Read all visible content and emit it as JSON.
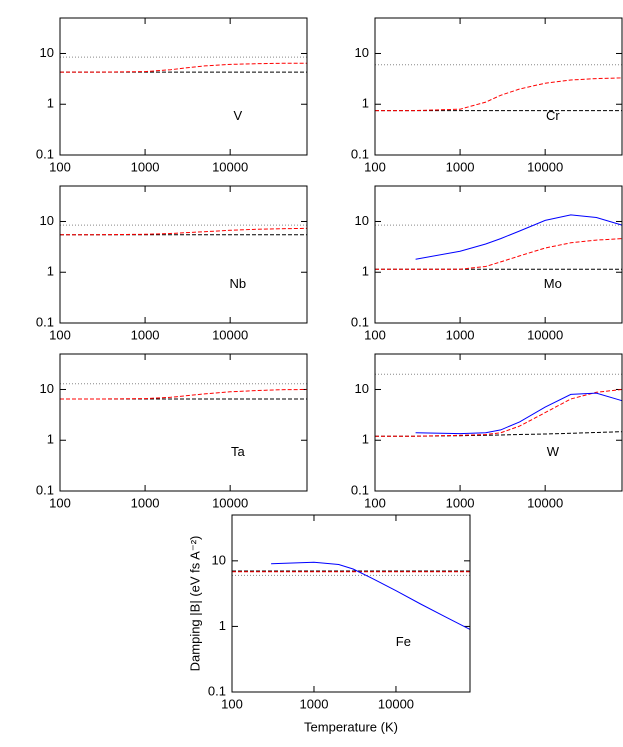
{
  "chart_data": [
    {
      "type": "line",
      "label": "V",
      "log_x": true,
      "log_y": true,
      "xlim": [
        100,
        80000
      ],
      "ylim": [
        0.1,
        50
      ],
      "xticks": [
        100,
        1000,
        10000
      ],
      "yticks": [
        0.1,
        1,
        10
      ],
      "x": [
        100,
        300,
        1000,
        2000,
        3000,
        5000,
        10000,
        20000,
        40000,
        80000
      ],
      "series": [
        {
          "color": "#000000",
          "style": "dashed",
          "values": [
            4.3,
            4.3,
            4.3,
            4.3,
            4.3,
            4.3,
            4.3,
            4.3,
            4.3,
            4.3
          ]
        },
        {
          "color": "#ff0000",
          "style": "dashed",
          "values": [
            4.3,
            4.3,
            4.4,
            4.8,
            5.2,
            5.7,
            6.1,
            6.3,
            6.4,
            6.4
          ]
        },
        {
          "color": "#888888",
          "style": "dotted",
          "values": [
            8.5,
            8.5,
            8.5,
            8.5,
            8.5,
            8.5,
            8.5,
            8.5,
            8.5,
            8.5
          ]
        }
      ]
    },
    {
      "type": "line",
      "label": "Cr",
      "log_x": true,
      "log_y": true,
      "xlim": [
        100,
        80000
      ],
      "ylim": [
        0.1,
        50
      ],
      "xticks": [
        100,
        1000,
        10000
      ],
      "yticks": [
        0.1,
        1,
        10
      ],
      "x": [
        100,
        300,
        1000,
        2000,
        3000,
        5000,
        10000,
        20000,
        40000,
        80000
      ],
      "series": [
        {
          "color": "#000000",
          "style": "dashed",
          "values": [
            0.75,
            0.75,
            0.75,
            0.75,
            0.75,
            0.75,
            0.75,
            0.75,
            0.75,
            0.75
          ]
        },
        {
          "color": "#ff0000",
          "style": "dashed",
          "values": [
            0.75,
            0.75,
            0.8,
            1.1,
            1.5,
            2.0,
            2.6,
            3.0,
            3.2,
            3.3
          ]
        },
        {
          "color": "#888888",
          "style": "dotted",
          "values": [
            6,
            6,
            6,
            6,
            6,
            6,
            6,
            6,
            6,
            6
          ]
        }
      ]
    },
    {
      "type": "line",
      "label": "Nb",
      "log_x": true,
      "log_y": true,
      "xlim": [
        100,
        80000
      ],
      "ylim": [
        0.1,
        50
      ],
      "xticks": [
        100,
        1000,
        10000
      ],
      "yticks": [
        0.1,
        1,
        10
      ],
      "x": [
        100,
        300,
        1000,
        2000,
        3000,
        5000,
        10000,
        20000,
        40000,
        80000
      ],
      "series": [
        {
          "color": "#000000",
          "style": "dashed",
          "values": [
            5.5,
            5.5,
            5.5,
            5.5,
            5.5,
            5.5,
            5.5,
            5.5,
            5.5,
            5.5
          ]
        },
        {
          "color": "#ff0000",
          "style": "dashed",
          "values": [
            5.5,
            5.5,
            5.6,
            5.8,
            6.0,
            6.3,
            6.7,
            7.0,
            7.2,
            7.3
          ]
        },
        {
          "color": "#888888",
          "style": "dotted",
          "values": [
            8.5,
            8.5,
            8.5,
            8.5,
            8.5,
            8.5,
            8.5,
            8.5,
            8.5,
            8.5
          ]
        }
      ]
    },
    {
      "type": "line",
      "label": "Mo",
      "log_x": true,
      "log_y": true,
      "xlim": [
        100,
        80000
      ],
      "ylim": [
        0.1,
        50
      ],
      "xticks": [
        100,
        1000,
        10000
      ],
      "yticks": [
        0.1,
        1,
        10
      ],
      "x": [
        100,
        300,
        1000,
        2000,
        3000,
        5000,
        10000,
        20000,
        40000,
        80000
      ],
      "series": [
        {
          "color": "#000000",
          "style": "dashed",
          "values": [
            1.15,
            1.15,
            1.15,
            1.15,
            1.15,
            1.15,
            1.15,
            1.15,
            1.15,
            1.15
          ]
        },
        {
          "color": "#ff0000",
          "style": "dashed",
          "values": [
            1.15,
            1.15,
            1.15,
            1.3,
            1.6,
            2.1,
            3.0,
            3.8,
            4.3,
            4.6
          ]
        },
        {
          "color": "#888888",
          "style": "dotted",
          "values": [
            8.5,
            8.5,
            8.5,
            8.5,
            8.5,
            8.5,
            8.5,
            8.5,
            8.5,
            8.5
          ]
        },
        {
          "color": "#0000ff",
          "style": "solid",
          "values": [
            null,
            1.8,
            2.6,
            3.6,
            4.6,
            6.5,
            10.5,
            13.5,
            12,
            8.5
          ]
        }
      ]
    },
    {
      "type": "line",
      "label": "Ta",
      "log_x": true,
      "log_y": true,
      "xlim": [
        100,
        80000
      ],
      "ylim": [
        0.1,
        50
      ],
      "xticks": [
        100,
        1000,
        10000
      ],
      "yticks": [
        0.1,
        1,
        10
      ],
      "x": [
        100,
        300,
        1000,
        2000,
        3000,
        5000,
        10000,
        20000,
        40000,
        80000
      ],
      "series": [
        {
          "color": "#000000",
          "style": "dashed",
          "values": [
            6.5,
            6.5,
            6.5,
            6.5,
            6.5,
            6.5,
            6.5,
            6.5,
            6.5,
            6.5
          ]
        },
        {
          "color": "#ff0000",
          "style": "dashed",
          "values": [
            6.5,
            6.5,
            6.6,
            7.0,
            7.5,
            8.2,
            9.0,
            9.5,
            9.9,
            10
          ]
        },
        {
          "color": "#888888",
          "style": "dotted",
          "values": [
            13,
            13,
            13,
            13,
            13,
            13,
            13,
            13,
            13,
            13
          ]
        }
      ]
    },
    {
      "type": "line",
      "label": "W",
      "log_x": true,
      "log_y": true,
      "xlim": [
        100,
        80000
      ],
      "ylim": [
        0.1,
        50
      ],
      "xticks": [
        100,
        1000,
        10000
      ],
      "yticks": [
        0.1,
        1,
        10
      ],
      "x": [
        100,
        300,
        1000,
        2000,
        3000,
        5000,
        10000,
        20000,
        40000,
        80000
      ],
      "series": [
        {
          "color": "#000000",
          "style": "dashed",
          "values": [
            1.2,
            1.2,
            1.23,
            1.25,
            1.27,
            1.3,
            1.33,
            1.37,
            1.42,
            1.47
          ]
        },
        {
          "color": "#ff0000",
          "style": "dashed",
          "values": [
            1.2,
            1.2,
            1.25,
            1.3,
            1.4,
            1.9,
            3.5,
            6.5,
            8.8,
            10
          ]
        },
        {
          "color": "#888888",
          "style": "dotted",
          "values": [
            20,
            20,
            20,
            20,
            20,
            20,
            20,
            20,
            20,
            20
          ]
        },
        {
          "color": "#0000ff",
          "style": "solid",
          "values": [
            null,
            1.4,
            1.35,
            1.4,
            1.6,
            2.3,
            4.5,
            8,
            8.5,
            6
          ]
        }
      ]
    },
    {
      "type": "line",
      "label": "Fe",
      "xlabel": "Temperature (K)",
      "ylabel": "Damping |B| (eV fs A⁻²)",
      "log_x": true,
      "log_y": true,
      "xlim": [
        100,
        80000
      ],
      "ylim": [
        0.1,
        50
      ],
      "xticks": [
        100,
        1000,
        10000
      ],
      "yticks": [
        0.1,
        1,
        10
      ],
      "x": [
        100,
        300,
        1000,
        2000,
        3000,
        5000,
        10000,
        20000,
        40000,
        80000
      ],
      "series": [
        {
          "color": "#000000",
          "style": "dashed",
          "values": [
            7,
            7,
            7,
            7,
            7,
            7,
            7,
            7,
            7,
            7
          ]
        },
        {
          "color": "#ff0000",
          "style": "dashed",
          "values": [
            6.8,
            6.8,
            6.8,
            6.8,
            6.8,
            6.8,
            6.8,
            6.8,
            6.8,
            6.8
          ]
        },
        {
          "color": "#888888",
          "style": "dotted",
          "values": [
            6,
            6,
            6,
            6,
            6,
            6,
            6,
            6,
            6,
            6
          ]
        },
        {
          "color": "#0000ff",
          "style": "solid",
          "values": [
            null,
            9,
            9.5,
            8.8,
            7.5,
            5.5,
            3.5,
            2.2,
            1.4,
            0.9
          ]
        }
      ]
    }
  ]
}
